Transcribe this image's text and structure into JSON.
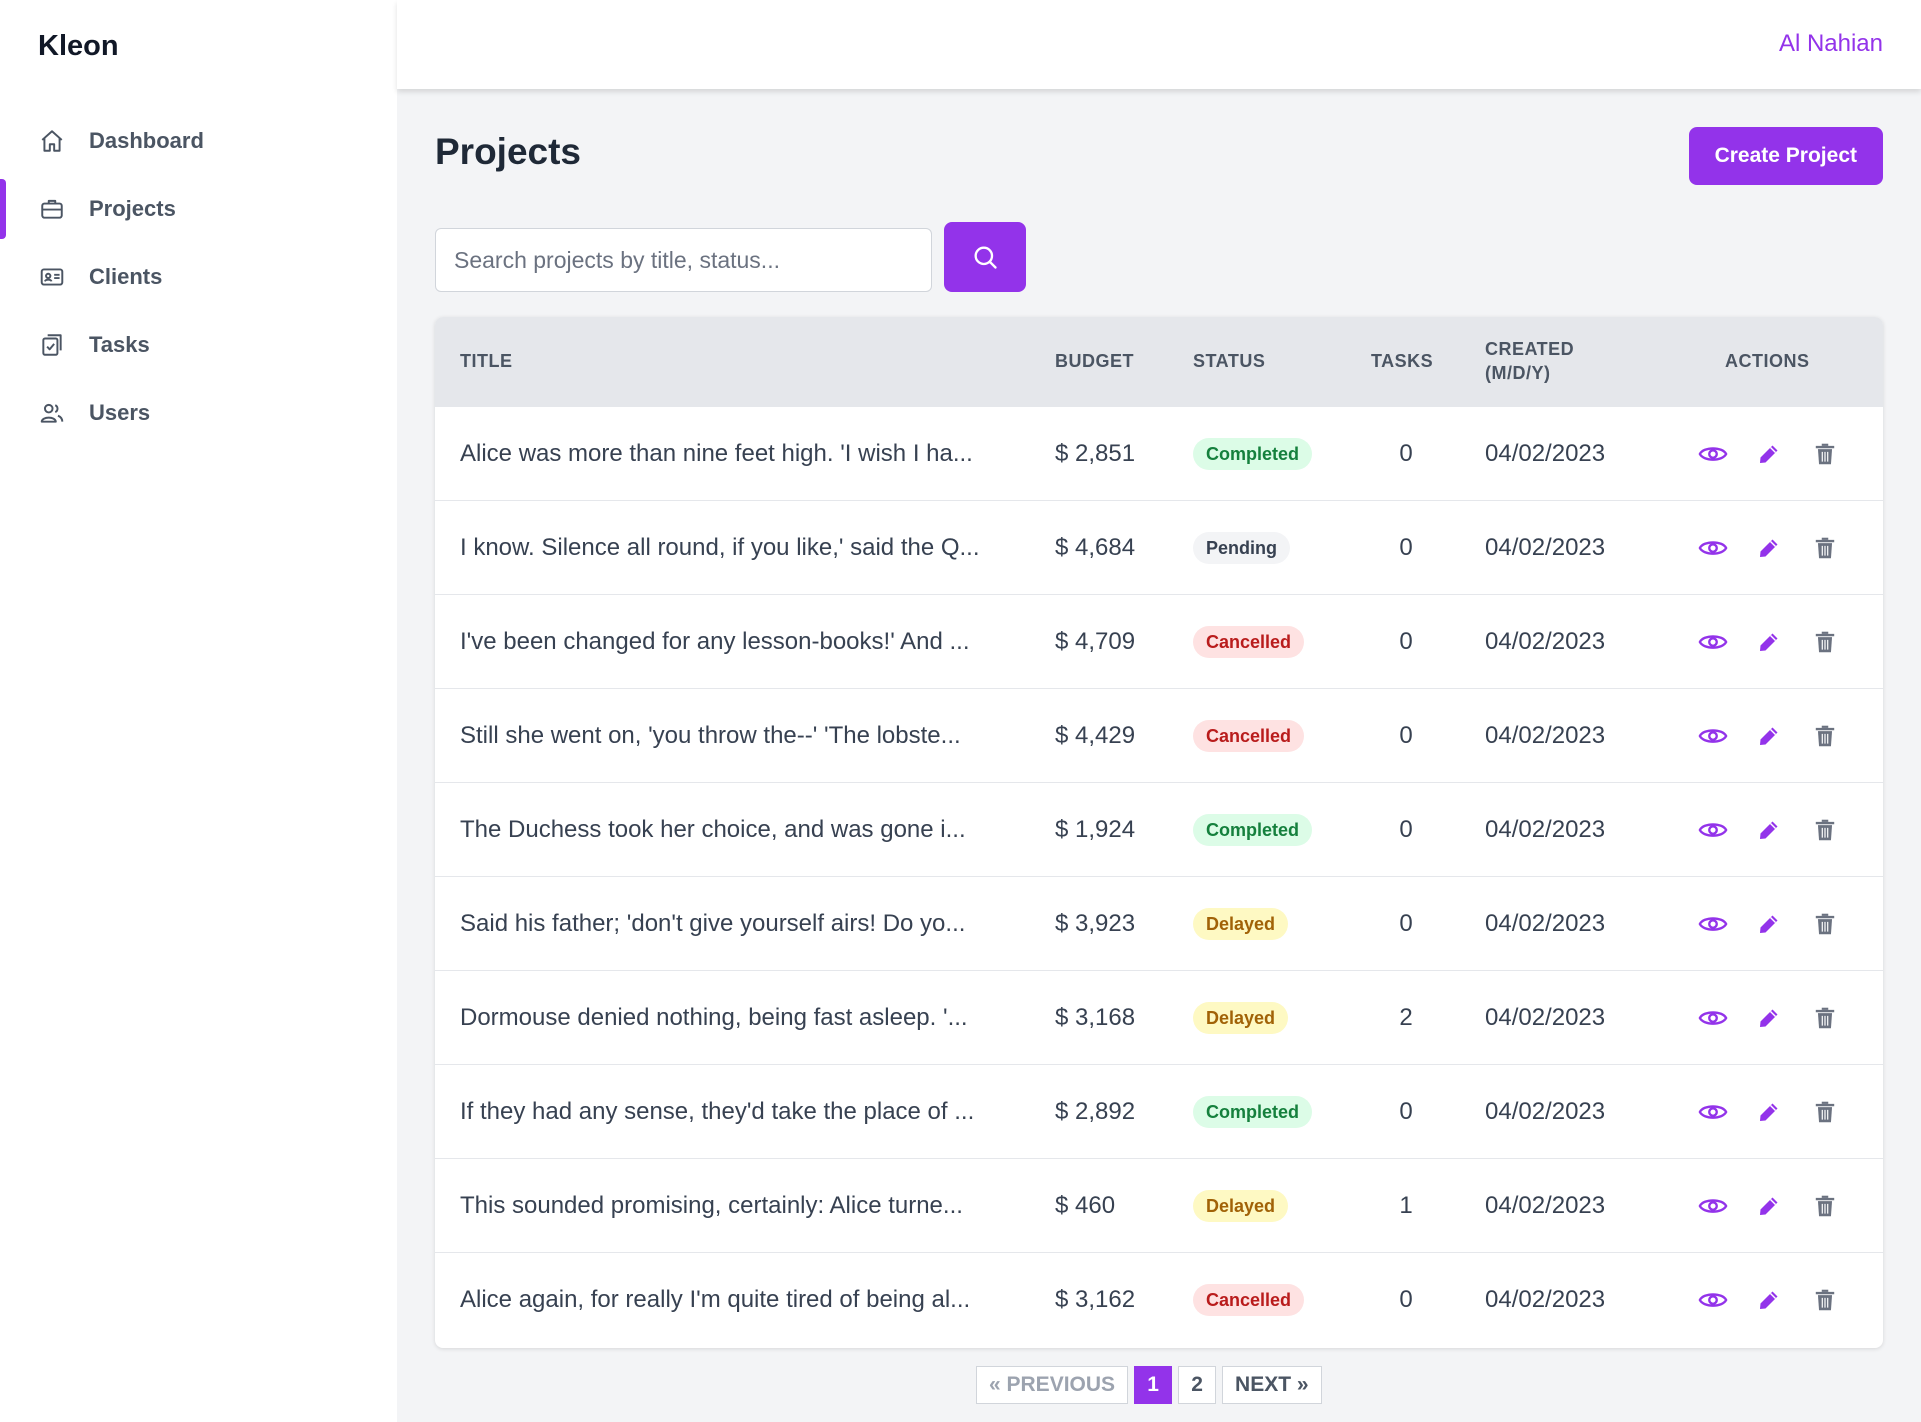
{
  "app": {
    "brand": "Kleon",
    "user_name": "Al Nahian"
  },
  "sidebar": {
    "items": [
      {
        "label": "Dashboard",
        "icon": "home-icon",
        "active": false
      },
      {
        "label": "Projects",
        "icon": "briefcase-icon",
        "active": true
      },
      {
        "label": "Clients",
        "icon": "id-card-icon",
        "active": false
      },
      {
        "label": "Tasks",
        "icon": "clipboard-check-icon",
        "active": false
      },
      {
        "label": "Users",
        "icon": "users-icon",
        "active": false
      }
    ]
  },
  "page": {
    "title": "Projects",
    "create_label": "Create Project"
  },
  "search": {
    "placeholder": "Search projects by title, status...",
    "value": ""
  },
  "table": {
    "headers": {
      "title": "TITLE",
      "budget": "BUDGET",
      "status": "STATUS",
      "tasks": "TASKS",
      "created_line1": "CREATED",
      "created_line2": "(M/D/Y)",
      "actions": "ACTIONS"
    },
    "rows": [
      {
        "title": "Alice was more than nine feet high. 'I wish I ha...",
        "budget": "$ 2,851",
        "status": "Completed",
        "tasks": "0",
        "created": "04/02/2023"
      },
      {
        "title": "I know. Silence all round, if you like,' said the Q...",
        "budget": "$ 4,684",
        "status": "Pending",
        "tasks": "0",
        "created": "04/02/2023"
      },
      {
        "title": "I've been changed for any lesson-books!' And ...",
        "budget": "$ 4,709",
        "status": "Cancelled",
        "tasks": "0",
        "created": "04/02/2023"
      },
      {
        "title": "Still she went on, 'you throw the--' 'The lobste...",
        "budget": "$ 4,429",
        "status": "Cancelled",
        "tasks": "0",
        "created": "04/02/2023"
      },
      {
        "title": "The Duchess took her choice, and was gone i...",
        "budget": "$ 1,924",
        "status": "Completed",
        "tasks": "0",
        "created": "04/02/2023"
      },
      {
        "title": "Said his father; 'don't give yourself airs! Do yo...",
        "budget": "$ 3,923",
        "status": "Delayed",
        "tasks": "0",
        "created": "04/02/2023"
      },
      {
        "title": "Dormouse denied nothing, being fast asleep. '...",
        "budget": "$ 3,168",
        "status": "Delayed",
        "tasks": "2",
        "created": "04/02/2023"
      },
      {
        "title": "If they had any sense, they'd take the place of ...",
        "budget": "$ 2,892",
        "status": "Completed",
        "tasks": "0",
        "created": "04/02/2023"
      },
      {
        "title": "This sounded promising, certainly: Alice turne...",
        "budget": "$ 460",
        "status": "Delayed",
        "tasks": "1",
        "created": "04/02/2023"
      },
      {
        "title": "Alice again, for really I'm quite tired of being al...",
        "budget": "$ 3,162",
        "status": "Cancelled",
        "tasks": "0",
        "created": "04/02/2023"
      }
    ]
  },
  "pagination": {
    "previous": "« PREVIOUS",
    "pages": [
      "1",
      "2"
    ],
    "current": "1",
    "next": "NEXT »"
  },
  "colors": {
    "accent": "#9333ea",
    "completed": "#15803d",
    "cancelled": "#b91c1c",
    "delayed": "#a16207"
  }
}
